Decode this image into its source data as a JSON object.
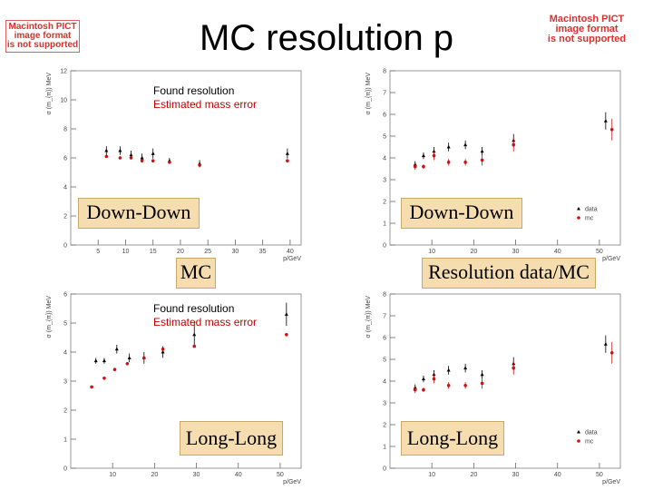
{
  "title": "MC resolution p",
  "placeholders": {
    "left": [
      "Macintosh PICT",
      "image format",
      "is not supported"
    ],
    "right": [
      "Macintosh PICT",
      "image format",
      "is not supported"
    ]
  },
  "labels": {
    "tl": "Down-Down",
    "mc": "MC",
    "tr": "Down-Down",
    "res": "Resolution data/MC",
    "bl": "Long-Long",
    "br": "Long-Long"
  },
  "legend_text": {
    "tl": [
      "Found resolution",
      "Estimated mass error"
    ],
    "bl": [
      "Found resolution",
      "Estimated mass error"
    ]
  },
  "legend_box": [
    "data",
    "mc"
  ],
  "colors": {
    "series_a": "#000000",
    "series_b": "#cc1111",
    "frame": "#999999",
    "label_bg": "#f5ddb0"
  },
  "chart_data": [
    {
      "type": "scatter",
      "xlabel": "p/GeV",
      "ylabel": "σ (m_{π}) MeV",
      "xlim": [
        0,
        42
      ],
      "ylim": [
        0,
        12
      ],
      "xticks": [
        5,
        10,
        15,
        20,
        25,
        30,
        35,
        40
      ],
      "yticks": [
        0,
        2,
        4,
        6,
        8,
        10,
        12
      ],
      "series": [
        {
          "name": "Found resolution",
          "marker": "triangle",
          "x": [
            6.5,
            9,
            11,
            13,
            15,
            18,
            23.5,
            39.5
          ],
          "y": [
            6.5,
            6.5,
            6.2,
            6.0,
            6.3,
            5.8,
            5.6,
            6.3
          ],
          "err": [
            0.3,
            0.3,
            0.3,
            0.3,
            0.35,
            0.2,
            0.25,
            0.35
          ]
        },
        {
          "name": "Estimated mass error",
          "marker": "circle",
          "x": [
            6.5,
            9,
            11,
            13,
            15,
            18,
            23.5,
            39.5
          ],
          "y": [
            6.1,
            6.0,
            6.0,
            5.8,
            5.8,
            5.7,
            5.5,
            5.8
          ],
          "err": [
            0,
            0,
            0,
            0,
            0,
            0,
            0,
            0
          ]
        }
      ]
    },
    {
      "type": "scatter",
      "xlabel": "p/GeV",
      "ylabel": "σ (m_{π}) MeV",
      "xlim": [
        0,
        55
      ],
      "ylim": [
        0,
        8
      ],
      "xticks": [
        10,
        20,
        30,
        40,
        50
      ],
      "yticks": [
        0,
        1,
        2,
        3,
        4,
        5,
        6,
        7,
        8
      ],
      "legend": [
        "data",
        "mc"
      ],
      "series": [
        {
          "name": "data",
          "marker": "triangle",
          "x": [
            6,
            8,
            10.5,
            14,
            18,
            22,
            29.5,
            51.5
          ],
          "y": [
            3.7,
            4.1,
            4.3,
            4.5,
            4.6,
            4.3,
            4.8,
            5.7
          ],
          "err": [
            0.15,
            0.15,
            0.2,
            0.2,
            0.2,
            0.2,
            0.3,
            0.4
          ]
        },
        {
          "name": "mc",
          "marker": "circle",
          "x": [
            6,
            8,
            10.5,
            14,
            18,
            22,
            29.5,
            53
          ],
          "y": [
            3.6,
            3.6,
            4.1,
            3.8,
            3.8,
            3.9,
            4.6,
            5.3
          ],
          "err": [
            0.15,
            0.1,
            0.2,
            0.15,
            0.15,
            0.25,
            0.3,
            0.5
          ]
        }
      ]
    },
    {
      "type": "scatter",
      "xlabel": "p/GeV",
      "ylabel": "σ (m_{π}) MeV",
      "xlim": [
        0,
        55
      ],
      "ylim": [
        0,
        6
      ],
      "xticks": [
        10,
        20,
        30,
        40,
        50
      ],
      "yticks": [
        0,
        1,
        2,
        3,
        4,
        5,
        6
      ],
      "series": [
        {
          "name": "Found resolution",
          "marker": "triangle",
          "x": [
            6,
            8,
            11,
            14,
            17.5,
            22,
            29.5,
            51.5
          ],
          "y": [
            3.7,
            3.7,
            4.1,
            3.8,
            3.8,
            4.0,
            4.6,
            5.3
          ],
          "err": [
            0.1,
            0.1,
            0.15,
            0.15,
            0.2,
            0.2,
            0.4,
            0.4
          ]
        },
        {
          "name": "Estimated mass error",
          "marker": "circle",
          "x": [
            5,
            8,
            10.5,
            13.5,
            17.5,
            22,
            29.5,
            51.5
          ],
          "y": [
            2.8,
            3.1,
            3.4,
            3.6,
            3.8,
            4.1,
            4.2,
            4.6
          ],
          "err": [
            0,
            0,
            0,
            0,
            0,
            0,
            0,
            0
          ]
        }
      ]
    },
    {
      "type": "scatter",
      "xlabel": "p/GeV",
      "ylabel": "σ (m_{π}) MeV",
      "xlim": [
        0,
        55
      ],
      "ylim": [
        0,
        8
      ],
      "xticks": [
        10,
        20,
        30,
        40,
        50
      ],
      "yticks": [
        0,
        1,
        2,
        3,
        4,
        5,
        6,
        7,
        8
      ],
      "legend": [
        "data",
        "mc"
      ],
      "series": [
        {
          "name": "data",
          "marker": "triangle",
          "x": [
            6,
            8,
            10.5,
            14,
            18,
            22,
            29.5,
            51.5
          ],
          "y": [
            3.7,
            4.1,
            4.3,
            4.5,
            4.6,
            4.3,
            4.8,
            5.7
          ],
          "err": [
            0.15,
            0.15,
            0.2,
            0.2,
            0.2,
            0.2,
            0.3,
            0.4
          ]
        },
        {
          "name": "mc",
          "marker": "circle",
          "x": [
            6,
            8,
            10.5,
            14,
            18,
            22,
            29.5,
            53
          ],
          "y": [
            3.6,
            3.6,
            4.1,
            3.8,
            3.8,
            3.9,
            4.6,
            5.3
          ],
          "err": [
            0.15,
            0.1,
            0.2,
            0.15,
            0.15,
            0.25,
            0.3,
            0.5
          ]
        }
      ]
    }
  ]
}
